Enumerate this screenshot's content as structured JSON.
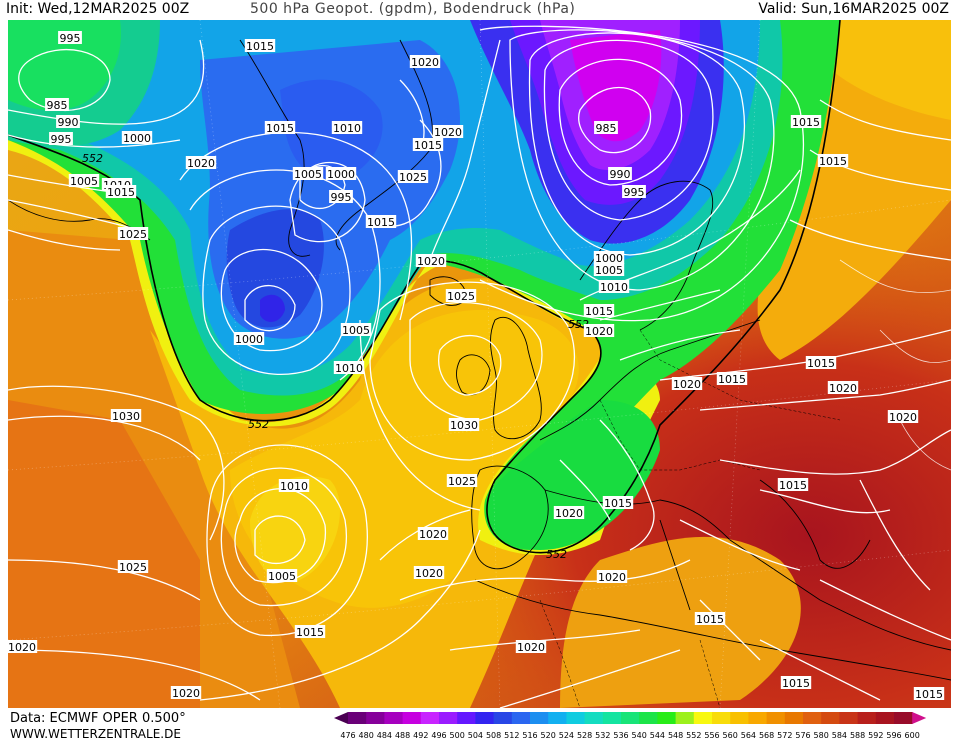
{
  "header": {
    "init": "Init: Wed,12MAR2025 00Z",
    "title": "500 hPa Geopot. (gpdm), Bodendruck (hPa)",
    "valid": "Valid: Sun,16MAR2025 00Z"
  },
  "footer": {
    "data_source": "Data: ECMWF OPER 0.500°",
    "website": "WWW.WETTERZENTRALE.DE"
  },
  "colorbar": {
    "ticks": [
      "476",
      "480",
      "484",
      "488",
      "492",
      "496",
      "500",
      "504",
      "508",
      "512",
      "516",
      "520",
      "524",
      "528",
      "532",
      "536",
      "540",
      "544",
      "548",
      "552",
      "556",
      "560",
      "564",
      "568",
      "572",
      "576",
      "580",
      "584",
      "588",
      "592",
      "596",
      "600"
    ],
    "colors": [
      "#4a0052",
      "#6a0078",
      "#86009a",
      "#a600bf",
      "#c600e0",
      "#c824ff",
      "#9a1cff",
      "#6418ff",
      "#3224f0",
      "#2846e6",
      "#2a66f0",
      "#1c8ef0",
      "#12b0f0",
      "#10cce0",
      "#14dcc0",
      "#14e4a0",
      "#18e478",
      "#1ce448",
      "#28ec18",
      "#9cf01c",
      "#f8f810",
      "#f8dc0a",
      "#f8c000",
      "#f8a800",
      "#f09000",
      "#e87800",
      "#e06010",
      "#d44a10",
      "#c83418",
      "#b8201c",
      "#a81420",
      "#980c2a",
      "#d0108c"
    ]
  },
  "map": {
    "labels_552": [
      "552",
      "552",
      "552",
      "552",
      "552"
    ],
    "pressure_labels": {
      "isobar_995_a": "995",
      "isobar_985_a": "985",
      "isobar_990_a": "990",
      "isobar_995_b": "995",
      "isobar_1000_a": "1000",
      "isobar_1005_a": "1005",
      "isobar_1010_a": "1010",
      "isobar_1015_a": "1015",
      "isobar_1020_a": "1020",
      "isobar_1025_a": "1025",
      "isobar_1015_b": "1015",
      "isobar_1010_b": "1010",
      "isobar_1020_b": "1020",
      "isobar_1005_b": "1005",
      "isobar_1000_b": "1000",
      "isobar_995_c": "995",
      "isobar_1015_c": "1015",
      "isobar_1025_b": "1025",
      "isobar_1015_d": "1015",
      "isobar_1020_c": "1020",
      "isobar_1020_d": "1020",
      "isobar_1015_e": "1015",
      "isobar_985_b": "985",
      "isobar_990_b": "990",
      "isobar_995_d": "995",
      "isobar_1000_c": "1000",
      "isobar_1005_c": "1005",
      "isobar_1010_c": "1010",
      "isobar_1015_f": "1015",
      "isobar_1020_e": "1020",
      "isobar_1015_g": "1015",
      "isobar_1015_h": "1015",
      "isobar_1000_d": "1000",
      "isobar_1005_d": "1005",
      "isobar_1010_d": "1010",
      "isobar_1020_f": "1020",
      "isobar_1025_c": "1025",
      "isobar_1030_a": "1030",
      "isobar_1030_b": "1030",
      "isobar_1025_d": "1025",
      "isobar_1010_e": "1010",
      "isobar_1005_e": "1005",
      "isobar_1025_e": "1025",
      "isobar_1020_g": "1020",
      "isobar_1020_h": "1020",
      "isobar_1020_i": "1020",
      "isobar_1015_i": "1015",
      "isobar_1020_j": "1020",
      "isobar_1020_k": "1020",
      "isobar_1015_j": "1015",
      "isobar_1015_k": "1015",
      "isobar_1015_l": "1015",
      "isobar_1020_l": "1020",
      "isobar_1020_m": "1020",
      "isobar_1015_m": "1015",
      "isobar_1020_n": "1020",
      "isobar_1015_n": "1015",
      "isobar_1015_o": "1015",
      "isobar_1015_p": "1015",
      "isobar_1020_o": "1020"
    }
  }
}
